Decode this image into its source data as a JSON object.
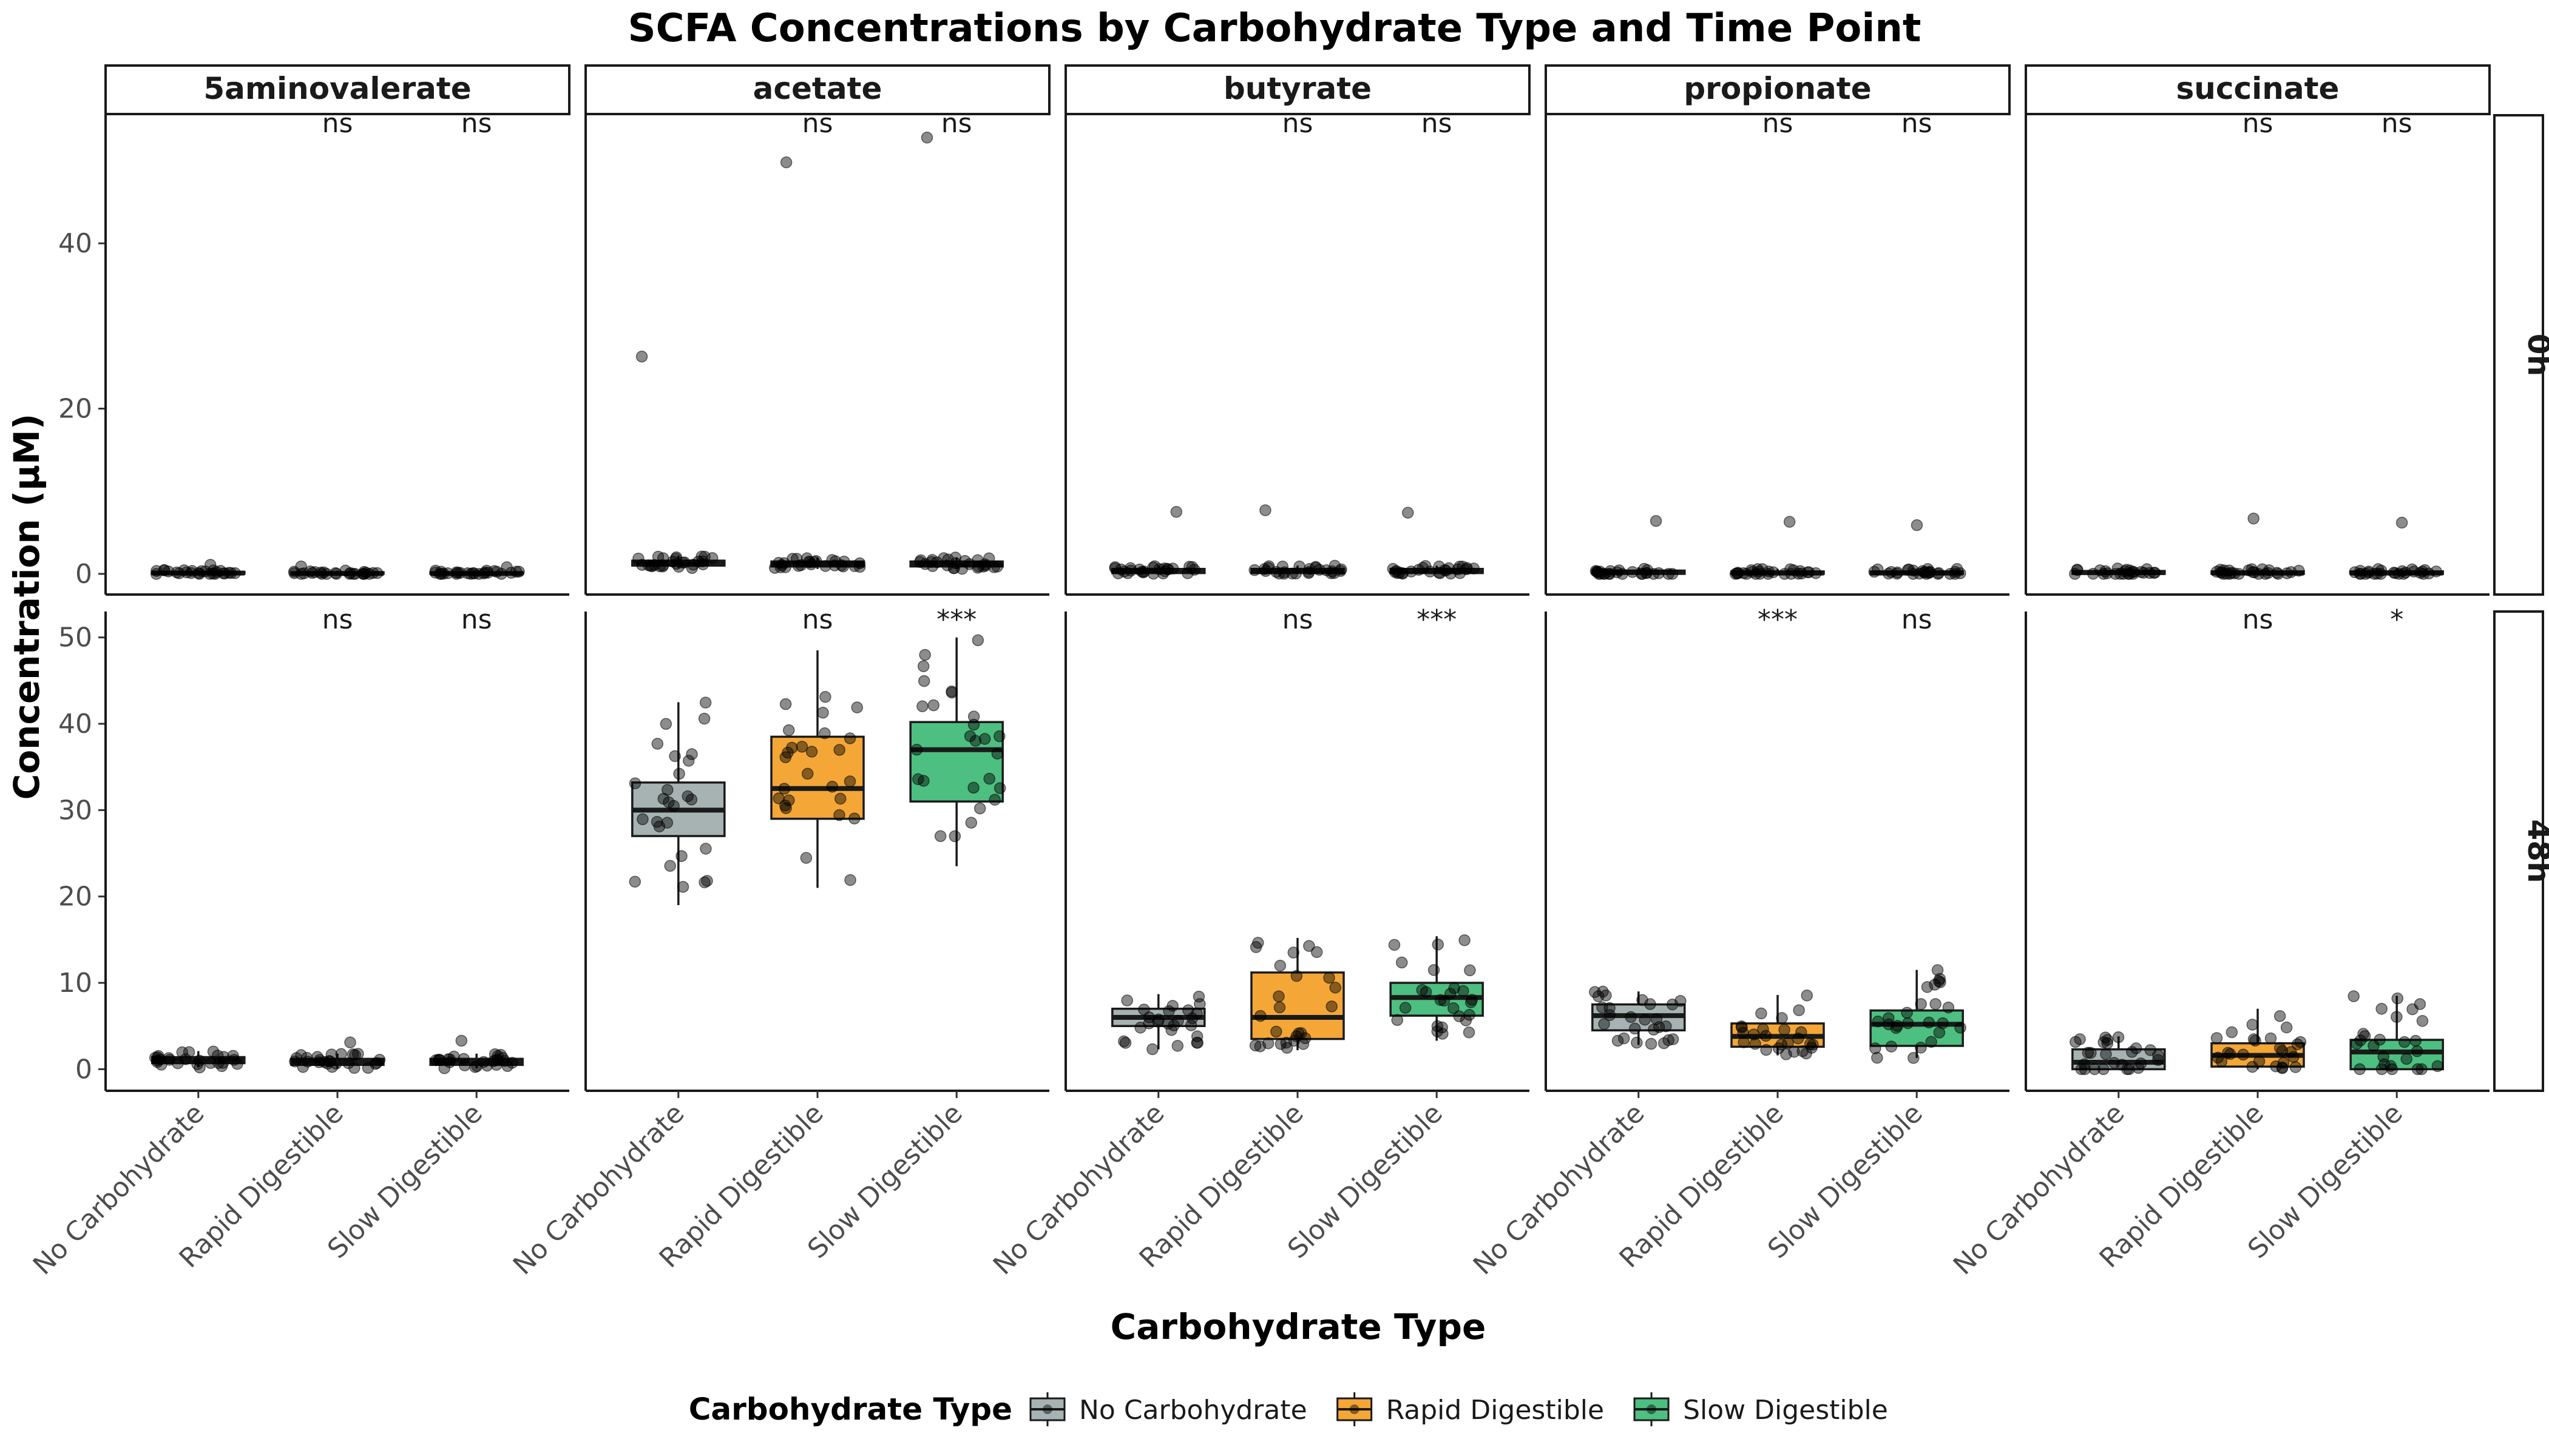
{
  "chart_data": {
    "type": "box",
    "title": "SCFA Concentrations by Carbohydrate Type and Time Point",
    "xlabel": "Carbohydrate Type",
    "ylabel": "Concentration (µM)",
    "facet_columns": [
      "5aminovalerate",
      "acetate",
      "butyrate",
      "propionate",
      "succinate"
    ],
    "facet_rows": [
      "0h",
      "48h"
    ],
    "categories": [
      "No Carbohydrate",
      "Rapid Digestible",
      "Slow Digestible"
    ],
    "colors": {
      "No Carbohydrate": "#A6B3B2",
      "Rapid Digestible": "#F4A736",
      "Slow Digestible": "#4DBF80"
    },
    "y_ticks": {
      "0h": [
        0,
        20,
        40
      ],
      "48h": [
        0,
        10,
        20,
        30,
        40,
        50
      ]
    },
    "ylim": {
      "0h": [
        -2.5,
        55.5
      ],
      "48h": [
        -2.5,
        53
      ]
    },
    "legend": {
      "title": "Carbohydrate Type",
      "position": "bottom",
      "entries": [
        "No Carbohydrate",
        "Rapid Digestible",
        "Slow Digestible"
      ]
    },
    "grid": false,
    "panels": [
      {
        "row": "0h",
        "column": "5aminovalerate",
        "significance": [
          "",
          "ns",
          "ns"
        ],
        "boxes": [
          {
            "group": "No Carbohydrate",
            "q1": 0.0,
            "median": 0.1,
            "q3": 0.25,
            "whisker_low": 0.0,
            "whisker_high": 0.5,
            "outliers": [
              1.1
            ]
          },
          {
            "group": "Rapid Digestible",
            "q1": 0.0,
            "median": 0.05,
            "q3": 0.2,
            "whisker_low": 0.0,
            "whisker_high": 0.4,
            "outliers": [
              0.9
            ]
          },
          {
            "group": "Slow Digestible",
            "q1": 0.0,
            "median": 0.05,
            "q3": 0.2,
            "whisker_low": 0.0,
            "whisker_high": 0.4,
            "outliers": [
              0.8
            ]
          }
        ]
      },
      {
        "row": "0h",
        "column": "acetate",
        "significance": [
          "",
          "ns",
          "ns"
        ],
        "boxes": [
          {
            "group": "No Carbohydrate",
            "q1": 1.0,
            "median": 1.3,
            "q3": 1.6,
            "whisker_low": 0.7,
            "whisker_high": 2.2,
            "outliers": [
              26.3
            ]
          },
          {
            "group": "Rapid Digestible",
            "q1": 0.9,
            "median": 1.2,
            "q3": 1.5,
            "whisker_low": 0.6,
            "whisker_high": 2.0,
            "outliers": [
              49.8
            ]
          },
          {
            "group": "Slow Digestible",
            "q1": 0.9,
            "median": 1.2,
            "q3": 1.5,
            "whisker_low": 0.6,
            "whisker_high": 2.0,
            "outliers": [
              52.8
            ]
          }
        ]
      },
      {
        "row": "0h",
        "column": "butyrate",
        "significance": [
          "",
          "ns",
          "ns"
        ],
        "boxes": [
          {
            "group": "No Carbohydrate",
            "q1": 0.1,
            "median": 0.3,
            "q3": 0.6,
            "whisker_low": 0.0,
            "whisker_high": 1.0,
            "outliers": [
              7.5
            ]
          },
          {
            "group": "Rapid Digestible",
            "q1": 0.1,
            "median": 0.3,
            "q3": 0.6,
            "whisker_low": 0.0,
            "whisker_high": 1.0,
            "outliers": [
              7.7
            ]
          },
          {
            "group": "Slow Digestible",
            "q1": 0.1,
            "median": 0.3,
            "q3": 0.6,
            "whisker_low": 0.0,
            "whisker_high": 1.0,
            "outliers": [
              7.4
            ]
          }
        ]
      },
      {
        "row": "0h",
        "column": "propionate",
        "significance": [
          "",
          "ns",
          "ns"
        ],
        "boxes": [
          {
            "group": "No Carbohydrate",
            "q1": 0.0,
            "median": 0.2,
            "q3": 0.4,
            "whisker_low": 0.0,
            "whisker_high": 0.8,
            "outliers": [
              6.4
            ]
          },
          {
            "group": "Rapid Digestible",
            "q1": 0.0,
            "median": 0.1,
            "q3": 0.3,
            "whisker_low": 0.0,
            "whisker_high": 0.6,
            "outliers": [
              6.3
            ]
          },
          {
            "group": "Slow Digestible",
            "q1": 0.0,
            "median": 0.1,
            "q3": 0.3,
            "whisker_low": 0.0,
            "whisker_high": 0.6,
            "outliers": [
              5.9
            ]
          }
        ]
      },
      {
        "row": "0h",
        "column": "succinate",
        "significance": [
          "",
          "ns",
          "ns"
        ],
        "boxes": [
          {
            "group": "No Carbohydrate",
            "q1": 0.0,
            "median": 0.15,
            "q3": 0.35,
            "whisker_low": 0.0,
            "whisker_high": 0.7,
            "outliers": []
          },
          {
            "group": "Rapid Digestible",
            "q1": 0.0,
            "median": 0.1,
            "q3": 0.3,
            "whisker_low": 0.0,
            "whisker_high": 0.6,
            "outliers": [
              6.7
            ]
          },
          {
            "group": "Slow Digestible",
            "q1": 0.0,
            "median": 0.1,
            "q3": 0.3,
            "whisker_low": 0.0,
            "whisker_high": 0.6,
            "outliers": [
              6.2
            ]
          }
        ]
      },
      {
        "row": "48h",
        "column": "5aminovalerate",
        "significance": [
          "",
          "ns",
          "ns"
        ],
        "boxes": [
          {
            "group": "No Carbohydrate",
            "q1": 0.7,
            "median": 1.1,
            "q3": 1.4,
            "whisker_low": 0.2,
            "whisker_high": 2.1,
            "outliers": []
          },
          {
            "group": "Rapid Digestible",
            "q1": 0.5,
            "median": 0.9,
            "q3": 1.2,
            "whisker_low": 0.1,
            "whisker_high": 1.8,
            "outliers": [
              3.1
            ]
          },
          {
            "group": "Slow Digestible",
            "q1": 0.5,
            "median": 0.9,
            "q3": 1.2,
            "whisker_low": 0.1,
            "whisker_high": 1.8,
            "outliers": [
              3.3
            ]
          }
        ]
      },
      {
        "row": "48h",
        "column": "acetate",
        "significance": [
          "",
          "ns",
          "***"
        ],
        "boxes": [
          {
            "group": "No Carbohydrate",
            "q1": 27.0,
            "median": 30.0,
            "q3": 33.2,
            "whisker_low": 19.0,
            "whisker_high": 42.5,
            "outliers": []
          },
          {
            "group": "Rapid Digestible",
            "q1": 29.0,
            "median": 32.5,
            "q3": 38.5,
            "whisker_low": 21.0,
            "whisker_high": 48.5,
            "outliers": []
          },
          {
            "group": "Slow Digestible",
            "q1": 31.0,
            "median": 37.0,
            "q3": 40.2,
            "whisker_low": 23.5,
            "whisker_high": 50.0,
            "outliers": []
          }
        ]
      },
      {
        "row": "48h",
        "column": "butyrate",
        "significance": [
          "",
          "ns",
          "***"
        ],
        "boxes": [
          {
            "group": "No Carbohydrate",
            "q1": 5.0,
            "median": 6.0,
            "q3": 7.0,
            "whisker_low": 2.3,
            "whisker_high": 8.7,
            "outliers": []
          },
          {
            "group": "Rapid Digestible",
            "q1": 3.5,
            "median": 6.0,
            "q3": 11.2,
            "whisker_low": 2.2,
            "whisker_high": 15.2,
            "outliers": []
          },
          {
            "group": "Slow Digestible",
            "q1": 6.2,
            "median": 8.3,
            "q3": 10.0,
            "whisker_low": 3.3,
            "whisker_high": 15.4,
            "outliers": []
          }
        ]
      },
      {
        "row": "48h",
        "column": "propionate",
        "significance": [
          "",
          "***",
          "ns"
        ],
        "boxes": [
          {
            "group": "No Carbohydrate",
            "q1": 4.5,
            "median": 6.2,
            "q3": 7.5,
            "whisker_low": 2.8,
            "whisker_high": 9.0,
            "outliers": []
          },
          {
            "group": "Rapid Digestible",
            "q1": 2.6,
            "median": 3.8,
            "q3": 5.3,
            "whisker_low": 1.6,
            "whisker_high": 8.6,
            "outliers": []
          },
          {
            "group": "Slow Digestible",
            "q1": 2.7,
            "median": 5.2,
            "q3": 6.8,
            "whisker_low": 1.3,
            "whisker_high": 11.5,
            "outliers": []
          }
        ]
      },
      {
        "row": "48h",
        "column": "succinate",
        "significance": [
          "",
          "ns",
          "*"
        ],
        "boxes": [
          {
            "group": "No Carbohydrate",
            "q1": 0.0,
            "median": 0.8,
            "q3": 2.3,
            "whisker_low": 0.0,
            "whisker_high": 3.8,
            "outliers": []
          },
          {
            "group": "Rapid Digestible",
            "q1": 0.3,
            "median": 1.6,
            "q3": 3.0,
            "whisker_low": 0.0,
            "whisker_high": 7.0,
            "outliers": []
          },
          {
            "group": "Slow Digestible",
            "q1": 0.0,
            "median": 2.0,
            "q3": 3.4,
            "whisker_low": 0.0,
            "whisker_high": 8.5,
            "outliers": []
          }
        ]
      }
    ]
  }
}
